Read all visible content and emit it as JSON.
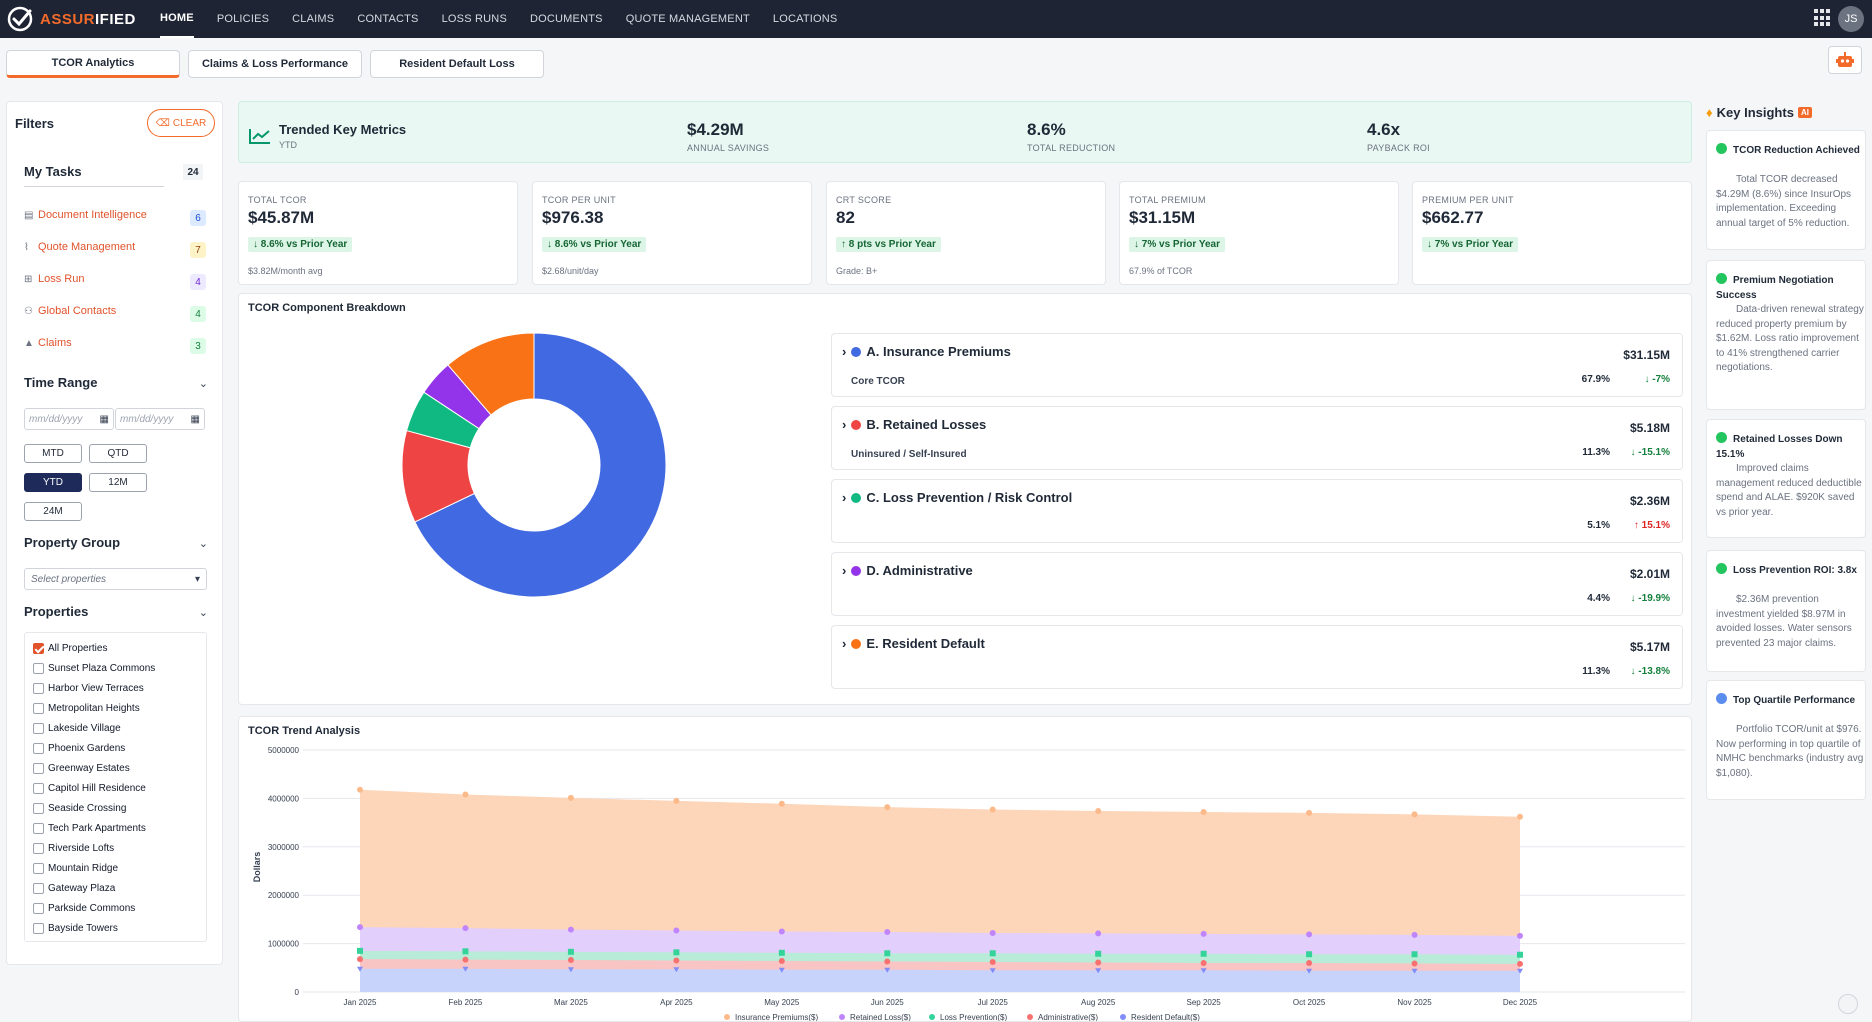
{
  "app": {
    "logo_accent": "ASSUR",
    "logo_rest": "IFIED",
    "user_initials": "JS"
  },
  "nav": [
    "HOME",
    "POLICIES",
    "CLAIMS",
    "CONTACTS",
    "LOSS RUNS",
    "DOCUMENTS",
    "QUOTE MANAGEMENT",
    "LOCATIONS"
  ],
  "subtabs": [
    "TCOR Analytics",
    "Claims & Loss Performance",
    "Resident Default Loss"
  ],
  "filters": {
    "title": "Filters",
    "clear": "CLEAR",
    "my_tasks": "My Tasks",
    "task_total": "24",
    "tasks": [
      {
        "label": "Document Intelligence",
        "count": "6",
        "icon": "document-icon",
        "badge_bg": "#dbeafe",
        "badge_fg": "#1d4ed8"
      },
      {
        "label": "Quote Management",
        "count": "7",
        "icon": "chart-line-icon",
        "badge_bg": "#fef3c7",
        "badge_fg": "#92400e"
      },
      {
        "label": "Loss Run",
        "count": "4",
        "icon": "grid-icon",
        "badge_bg": "#ede9fe",
        "badge_fg": "#6d28d9"
      },
      {
        "label": "Global Contacts",
        "count": "4",
        "icon": "people-icon",
        "badge_bg": "#dcfce7",
        "badge_fg": "#15803d"
      },
      {
        "label": "Claims",
        "count": "3",
        "icon": "warning-icon",
        "badge_bg": "#dcfce7",
        "badge_fg": "#15803d"
      }
    ],
    "time_range": "Time Range",
    "date_placeholder": "mm/dd/yyyy",
    "ranges": [
      "MTD",
      "QTD",
      "YTD",
      "12M",
      "24M"
    ],
    "active_range": "YTD",
    "property_group": "Property Group",
    "select_placeholder": "Select properties",
    "properties_title": "Properties",
    "properties": [
      "All Properties",
      "Sunset Plaza Commons",
      "Harbor View Terraces",
      "Metropolitan Heights",
      "Lakeside Village",
      "Phoenix Gardens",
      "Greenway Estates",
      "Capitol Hill Residence",
      "Seaside Crossing",
      "Tech Park Apartments",
      "Riverside Lofts",
      "Mountain Ridge",
      "Gateway Plaza",
      "Parkside Commons",
      "Bayside Towers"
    ]
  },
  "trended": {
    "title": "Trended Key Metrics",
    "sub": "YTD",
    "metrics": [
      {
        "value": "$4.29M",
        "label": "ANNUAL SAVINGS"
      },
      {
        "value": "8.6%",
        "label": "TOTAL REDUCTION"
      },
      {
        "value": "4.6x",
        "label": "PAYBACK ROI"
      }
    ]
  },
  "kpis": [
    {
      "label": "TOTAL TCOR",
      "value": "$45.87M",
      "change": "↓ 8.6% vs Prior Year",
      "sub": "$3.82M/month avg"
    },
    {
      "label": "TCOR PER UNIT",
      "value": "$976.38",
      "change": "↓ 8.6% vs Prior Year",
      "sub": "$2.68/unit/day"
    },
    {
      "label": "CRT SCORE",
      "value": "82",
      "change": "↑ 8 pts vs Prior Year",
      "sub": "Grade: B+"
    },
    {
      "label": "TOTAL PREMIUM",
      "value": "$31.15M",
      "change": "↓ 7% vs Prior Year",
      "sub": "67.9% of TCOR"
    },
    {
      "label": "PREMIUM PER UNIT",
      "value": "$662.77",
      "change": "↓ 7% vs Prior Year",
      "sub": ""
    }
  ],
  "breakdown": {
    "title": "TCOR Component Breakdown",
    "components": [
      {
        "name": "A. Insurance Premiums",
        "sub": "Core TCOR",
        "amount": "$31.15M",
        "pct": "67.9%",
        "change": "↓ -7%",
        "color": "#4169e1",
        "change_color": "#15803d",
        "share": 67.9
      },
      {
        "name": "B. Retained Losses",
        "sub": "Uninsured / Self-Insured",
        "amount": "$5.18M",
        "pct": "11.3%",
        "change": "↓ -15.1%",
        "color": "#ef4444",
        "change_color": "#15803d",
        "share": 11.3
      },
      {
        "name": "C. Loss Prevention / Risk Control",
        "sub": "",
        "amount": "$2.36M",
        "pct": "5.1%",
        "change": "↑ 15.1%",
        "color": "#10b981",
        "change_color": "#dc2626",
        "share": 5.1
      },
      {
        "name": "D. Administrative",
        "sub": "",
        "amount": "$2.01M",
        "pct": "4.4%",
        "change": "↓ -19.9%",
        "color": "#9333ea",
        "change_color": "#15803d",
        "share": 4.4
      },
      {
        "name": "E. Resident Default",
        "sub": "",
        "amount": "$5.17M",
        "pct": "11.3%",
        "change": "↓ -13.8%",
        "color": "#f97316",
        "change_color": "#15803d",
        "share": 11.3
      }
    ]
  },
  "chart_data": {
    "type": "area",
    "title": "TCOR Trend Analysis",
    "xlabel": "",
    "ylabel": "Dollars",
    "ylim": [
      0,
      5000000
    ],
    "yticks": [
      "0",
      "1000000",
      "2000000",
      "3000000",
      "4000000",
      "5000000"
    ],
    "categories": [
      "Jan 2025",
      "Feb 2025",
      "Mar 2025",
      "Apr 2025",
      "May 2025",
      "Jun 2025",
      "Jul 2025",
      "Aug 2025",
      "Sep 2025",
      "Oct 2025",
      "Nov 2025",
      "Dec 2025"
    ],
    "series": [
      {
        "name": "Insurance Premiums($)",
        "color": "#fcb98a",
        "values": [
          4180000,
          4080000,
          4010000,
          3950000,
          3890000,
          3820000,
          3770000,
          3740000,
          3720000,
          3700000,
          3670000,
          3620000
        ]
      },
      {
        "name": "Retained Loss($)",
        "color": "#c084fc",
        "values": [
          1340000,
          1320000,
          1290000,
          1270000,
          1250000,
          1240000,
          1220000,
          1210000,
          1200000,
          1190000,
          1180000,
          1160000
        ]
      },
      {
        "name": "Loss Prevention($)",
        "color": "#34d399",
        "values": [
          850000,
          840000,
          830000,
          820000,
          810000,
          800000,
          800000,
          790000,
          790000,
          780000,
          780000,
          770000
        ]
      },
      {
        "name": "Administrative($)",
        "color": "#f87171",
        "values": [
          680000,
          670000,
          660000,
          650000,
          640000,
          630000,
          620000,
          610000,
          600000,
          600000,
          590000,
          580000
        ]
      },
      {
        "name": "Resident Default($)",
        "color": "#818cf8",
        "values": [
          480000,
          480000,
          470000,
          470000,
          460000,
          460000,
          450000,
          450000,
          450000,
          440000,
          440000,
          440000
        ]
      }
    ]
  },
  "insights": {
    "title": "Key Insights",
    "badge": "AI",
    "items": [
      {
        "title": "TCOR Reduction Achieved",
        "body": "Total TCOR decreased $4.29M (8.6%) since InsurOps implementation. Exceeding annual target of 5% reduction.",
        "kind": "check"
      },
      {
        "title": "Premium Negotiation Success",
        "body": "Data-driven renewal strategy reduced property premium by $1.62M. Loss ratio improvement to 41% strengthened carrier negotiations.",
        "kind": "check"
      },
      {
        "title": "Retained Losses Down 15.1%",
        "body": "Improved claims management reduced deductible spend and ALAE. $920K saved vs prior year.",
        "kind": "check"
      },
      {
        "title": "Loss Prevention ROI: 3.8x",
        "body": "$2.36M prevention investment yielded $8.97M in avoided losses. Water sensors prevented 23 major claims.",
        "kind": "check"
      },
      {
        "title": "Top Quartile Performance",
        "body": "Portfolio TCOR/unit at $976. Now performing in top quartile of NMHC benchmarks (industry avg $1,080).",
        "kind": "info"
      }
    ]
  }
}
